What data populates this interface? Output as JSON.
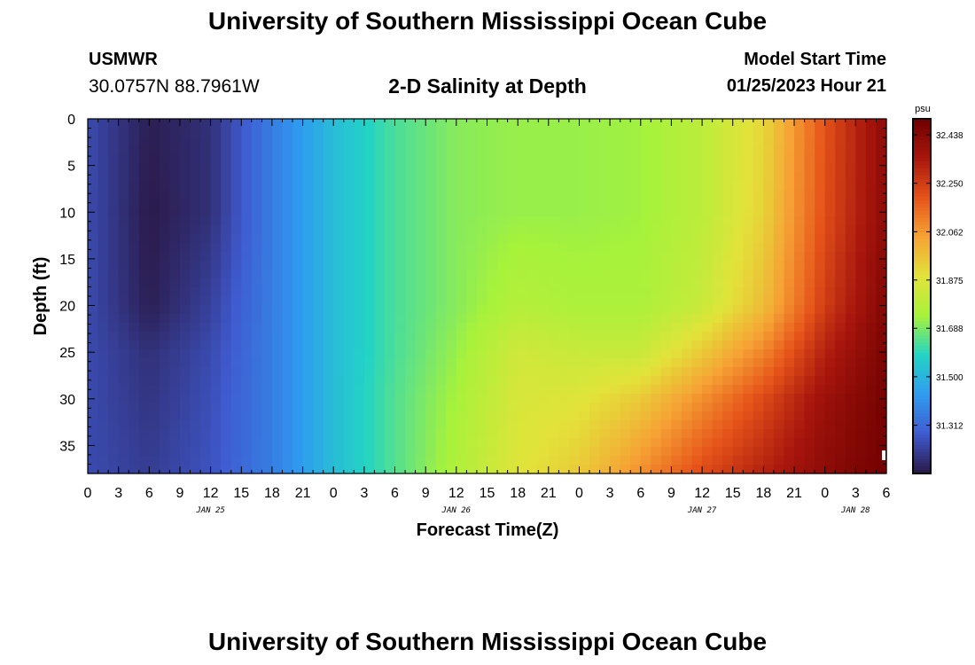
{
  "header": {
    "title": "University of Southern Mississippi Ocean Cube",
    "station": "USMWR",
    "coords": "30.0757N  88.7961W",
    "subtitle": "2-D Salinity at Depth",
    "model_label": "Model Start Time",
    "model_time": "01/25/2023 Hour 21"
  },
  "footer": {
    "title": "University of Southern Mississippi Ocean Cube"
  },
  "colorbar": {
    "unit": "psu",
    "ticks": [
      32.438,
      32.25,
      32.062,
      31.875,
      31.688,
      31.5,
      31.312
    ],
    "tick_labels": [
      "32.438",
      "32.250",
      "32.062",
      "31.875",
      "31.688",
      "31.500",
      "31.312"
    ],
    "range": [
      31.125,
      32.5
    ],
    "colors": [
      "#2a1846",
      "#3f5bd0",
      "#2f9bf0",
      "#23d4c4",
      "#a7f23b",
      "#e2e33a",
      "#f6a335",
      "#e6541a",
      "#a8160d",
      "#6e0000"
    ]
  },
  "chart_data": {
    "type": "heatmap",
    "title": "2-D Salinity at Depth",
    "xlabel": "Forecast Time(Z)",
    "ylabel": "Depth (ft)",
    "x_tick_labels": [
      "0",
      "3",
      "6",
      "9",
      "12",
      "15",
      "18",
      "21",
      "0",
      "3",
      "6",
      "9",
      "12",
      "15",
      "18",
      "21",
      "0",
      "3",
      "6",
      "9",
      "12",
      "15",
      "18",
      "21",
      "0",
      "3",
      "6"
    ],
    "x_hours": [
      0,
      3,
      6,
      9,
      12,
      15,
      18,
      21,
      24,
      27,
      30,
      33,
      36,
      39,
      42,
      45,
      48,
      51,
      54,
      57,
      60,
      63,
      66,
      69,
      72,
      75,
      78
    ],
    "x_range_hours": [
      0,
      78
    ],
    "date_labels": [
      {
        "label": "JAN 25",
        "hour": 12
      },
      {
        "label": "JAN 26",
        "hour": 36
      },
      {
        "label": "JAN 27",
        "hour": 60
      },
      {
        "label": "JAN 28",
        "hour": 75
      }
    ],
    "y_ticks": [
      0,
      5,
      10,
      15,
      20,
      25,
      30,
      35
    ],
    "y_range": [
      0,
      38
    ],
    "y_inverted": true,
    "value_unit": "psu",
    "hours": [
      0,
      6,
      12,
      18,
      24,
      30,
      36,
      42,
      48,
      54,
      60,
      66,
      72,
      78
    ],
    "depths": [
      0,
      10,
      20,
      25,
      30,
      38
    ],
    "values": [
      [
        31.24,
        31.14,
        31.18,
        31.36,
        31.52,
        31.63,
        31.7,
        31.72,
        31.72,
        31.73,
        31.79,
        31.92,
        32.2,
        32.42
      ],
      [
        31.24,
        31.13,
        31.18,
        31.36,
        31.52,
        31.63,
        31.7,
        31.72,
        31.72,
        31.73,
        31.79,
        31.93,
        32.21,
        32.42
      ],
      [
        31.24,
        31.14,
        31.22,
        31.36,
        31.52,
        31.63,
        31.7,
        31.77,
        31.75,
        31.75,
        31.82,
        31.98,
        32.25,
        32.45
      ],
      [
        31.24,
        31.18,
        31.24,
        31.36,
        31.52,
        31.63,
        31.72,
        31.84,
        31.82,
        31.82,
        31.95,
        32.1,
        32.32,
        32.47
      ],
      [
        31.24,
        31.19,
        31.25,
        31.36,
        31.52,
        31.64,
        31.74,
        31.86,
        31.88,
        31.95,
        32.08,
        32.22,
        32.38,
        32.48
      ],
      [
        31.24,
        31.21,
        31.26,
        31.36,
        31.52,
        31.64,
        31.76,
        31.88,
        31.95,
        32.08,
        32.22,
        32.32,
        32.42,
        32.49
      ]
    ]
  }
}
